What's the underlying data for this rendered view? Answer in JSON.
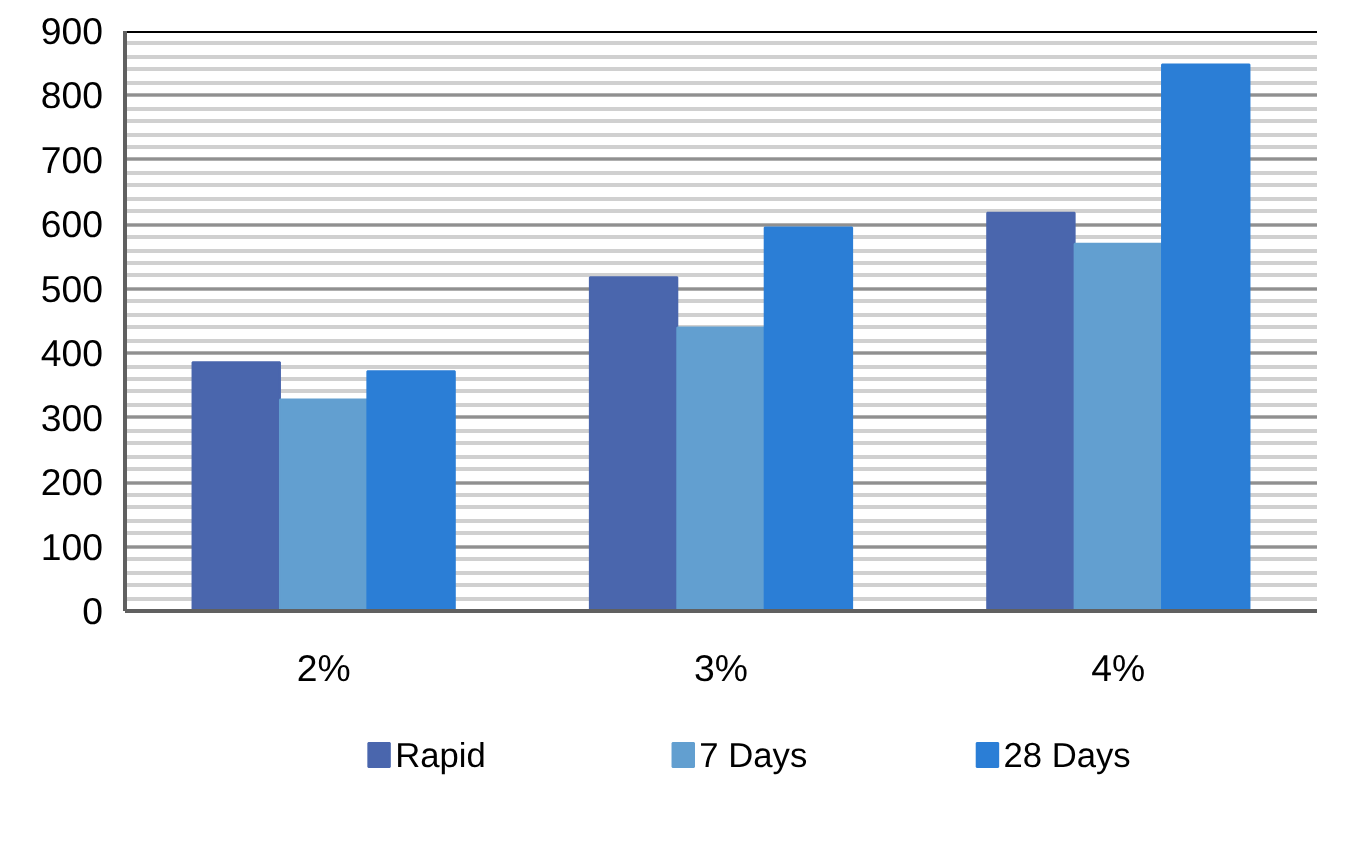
{
  "chart_data": {
    "type": "bar",
    "categories": [
      "2%",
      "3%",
      "4%"
    ],
    "series": [
      {
        "name": "Rapid",
        "color": "#4a66ad",
        "values": [
          386,
          518,
          618
        ]
      },
      {
        "name": "7 Days",
        "color": "#629fd0",
        "values": [
          328,
          440,
          570
        ]
      },
      {
        "name": "28 Days",
        "color": "#2b7ed6",
        "values": [
          372,
          595,
          848
        ]
      }
    ],
    "ylim": [
      0,
      900
    ],
    "yticks": [
      0,
      100,
      200,
      300,
      400,
      500,
      600,
      700,
      800,
      900
    ],
    "grid": "y",
    "legend": "bottom"
  }
}
